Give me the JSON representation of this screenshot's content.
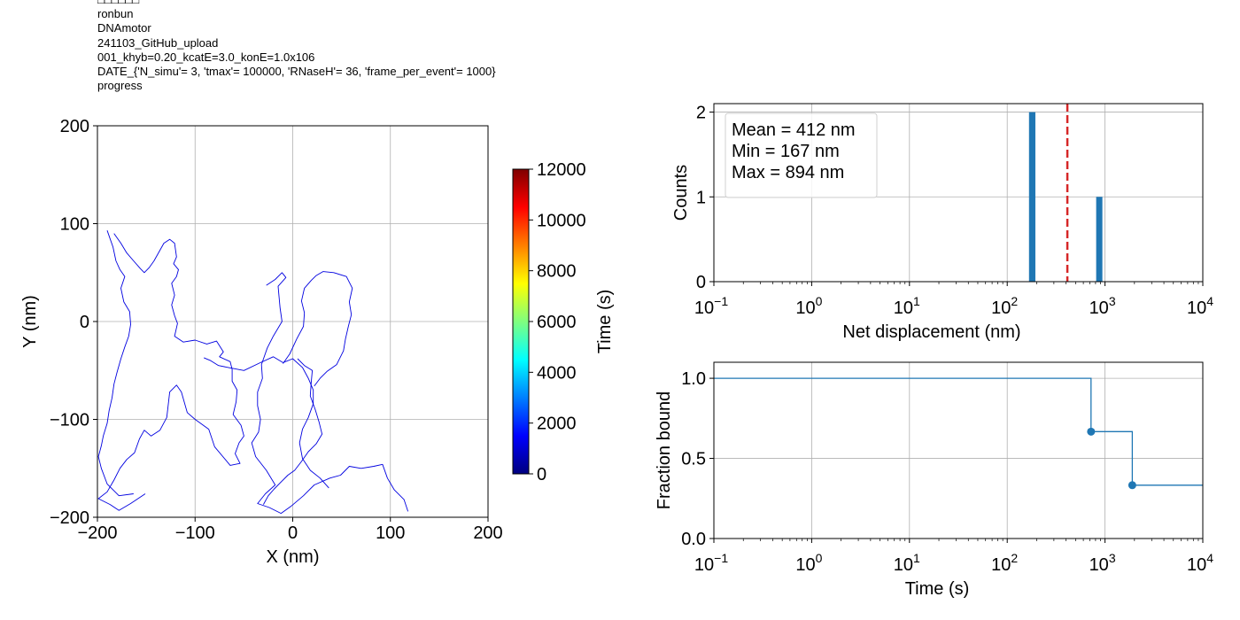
{
  "header": {
    "lines": [
      "□□□□□□",
      "ronbun",
      "DNAmotor",
      "241103_GitHub_upload",
      "001_khyb=0.20_kcatE=3.0_konE=1.0x106",
      "DATE_{'N_simu'= 3, 'tmax'= 100000, 'RNaseH'= 36, 'frame_per_event'= 1000}",
      "progress"
    ]
  },
  "chart_data": [
    {
      "type": "line",
      "name": "trajectory",
      "xlabel": "X (nm)",
      "ylabel": "Y (nm)",
      "xlim": [
        -200,
        200
      ],
      "ylim": [
        -200,
        200
      ],
      "xticks": [
        -200,
        -100,
        0,
        100,
        200
      ],
      "yticks": [
        -200,
        -100,
        0,
        100,
        200
      ],
      "grid": true,
      "line_color": "#0000e0",
      "colorbar": {
        "label": "Time (s)",
        "range": [
          0,
          12000
        ],
        "ticks": [
          0,
          2000,
          4000,
          6000,
          8000,
          10000,
          12000
        ],
        "colormap": "jet",
        "colors": [
          "#00007f",
          "#0000ff",
          "#007fff",
          "#00ffff",
          "#7fff7f",
          "#ffff00",
          "#ff7f00",
          "#ff0000",
          "#7f0000"
        ]
      },
      "segments": [
        [
          [
            -183,
            90
          ],
          [
            -176,
            80
          ],
          [
            -170,
            70
          ],
          [
            -163,
            62
          ],
          [
            -156,
            54
          ],
          [
            -152,
            50
          ],
          [
            -147,
            55
          ],
          [
            -142,
            62
          ],
          [
            -137,
            71
          ],
          [
            -132,
            80
          ],
          [
            -126,
            84
          ],
          [
            -121,
            80
          ],
          [
            -119,
            66
          ],
          [
            -122,
            59
          ],
          [
            -117,
            53
          ],
          [
            -119,
            46
          ],
          [
            -124,
            39
          ],
          [
            -121,
            27
          ],
          [
            -124,
            17
          ],
          [
            -121,
            6
          ],
          [
            -118,
            -2
          ],
          [
            -121,
            -15
          ],
          [
            -112,
            -21
          ],
          [
            -100,
            -19
          ],
          [
            -88,
            -23
          ],
          [
            -78,
            -20
          ],
          [
            -71,
            -31
          ],
          [
            -75,
            -36
          ],
          [
            -64,
            -41
          ],
          [
            -62,
            -49
          ],
          [
            -62,
            -61
          ],
          [
            -57,
            -70
          ],
          [
            -58,
            -82
          ],
          [
            -61,
            -95
          ],
          [
            -53,
            -106
          ],
          [
            -50,
            -117
          ],
          [
            -55,
            -124
          ],
          [
            -59,
            -135
          ],
          [
            -54,
            -145
          ],
          [
            -64,
            -147
          ],
          [
            -80,
            -128
          ],
          [
            -86,
            -110
          ],
          [
            -100,
            -100
          ],
          [
            -108,
            -93
          ],
          [
            -114,
            -72
          ],
          [
            -119,
            -65
          ],
          [
            -126,
            -72
          ],
          [
            -129,
            -98
          ],
          [
            -136,
            -111
          ],
          [
            -145,
            -117
          ],
          [
            -152,
            -111
          ],
          [
            -157,
            -120
          ],
          [
            -162,
            -134
          ],
          [
            -170,
            -141
          ],
          [
            -177,
            -150
          ],
          [
            -183,
            -162
          ],
          [
            -190,
            -174
          ],
          [
            -199,
            -181
          ],
          [
            -187,
            -187
          ],
          [
            -178,
            -193
          ],
          [
            -166,
            -186
          ],
          [
            -151,
            -176
          ]
        ],
        [
          [
            -190,
            93
          ],
          [
            -184,
            76
          ],
          [
            -181,
            62
          ],
          [
            -177,
            53
          ],
          [
            -172,
            46
          ],
          [
            -176,
            34
          ],
          [
            -173,
            20
          ],
          [
            -167,
            10
          ],
          [
            -166,
            -3
          ],
          [
            -168,
            -15
          ],
          [
            -172,
            -26
          ],
          [
            -176,
            -38
          ],
          [
            -180,
            -52
          ],
          [
            -183,
            -64
          ],
          [
            -185,
            -78
          ],
          [
            -188,
            -91
          ],
          [
            -190,
            -104
          ],
          [
            -194,
            -117
          ],
          [
            -196,
            -127
          ],
          [
            -199,
            -138
          ],
          [
            -196,
            -150
          ],
          [
            -190,
            -166
          ],
          [
            -178,
            -178
          ],
          [
            -163,
            -176
          ]
        ],
        [
          [
            -27,
            37
          ],
          [
            -18,
            43
          ],
          [
            -11,
            50
          ],
          [
            -7,
            45
          ],
          [
            -15,
            36
          ],
          [
            -14,
            25
          ],
          [
            -13,
            14
          ],
          [
            -11,
            0
          ],
          [
            -20,
            -15
          ],
          [
            -26,
            -27
          ],
          [
            -32,
            -44
          ],
          [
            -31,
            -58
          ],
          [
            -36,
            -72
          ],
          [
            -36,
            -86
          ],
          [
            -33,
            -100
          ],
          [
            -35,
            -113
          ],
          [
            -42,
            -124
          ],
          [
            -38,
            -138
          ],
          [
            -27,
            -152
          ],
          [
            -18,
            -167
          ],
          [
            -28,
            -176
          ],
          [
            -36,
            -186
          ],
          [
            -24,
            -190
          ],
          [
            -12,
            -196
          ],
          [
            -2,
            -189
          ],
          [
            11,
            -178
          ],
          [
            22,
            -167
          ],
          [
            38,
            -160
          ],
          [
            49,
            -157
          ],
          [
            58,
            -148
          ],
          [
            70,
            -150
          ],
          [
            83,
            -148
          ],
          [
            92,
            -146
          ],
          [
            97,
            -160
          ],
          [
            104,
            -172
          ],
          [
            114,
            -182
          ],
          [
            118,
            -194
          ]
        ],
        [
          [
            -91,
            -37
          ],
          [
            -84,
            -40
          ],
          [
            -76,
            -45
          ],
          [
            -66,
            -47
          ],
          [
            -50,
            -50
          ],
          [
            -33,
            -42
          ],
          [
            -20,
            -36
          ],
          [
            -10,
            -42
          ],
          [
            0,
            -38
          ],
          [
            10,
            -47
          ],
          [
            16,
            -58
          ],
          [
            21,
            -70
          ],
          [
            21,
            -84
          ],
          [
            16,
            -98
          ],
          [
            10,
            -110
          ],
          [
            7,
            -124
          ],
          [
            10,
            -140
          ],
          [
            18,
            -152
          ],
          [
            28,
            -160
          ],
          [
            37,
            -170
          ]
        ],
        [
          [
            -10,
            -43
          ],
          [
            -3,
            -33
          ],
          [
            4,
            -18
          ],
          [
            11,
            -5
          ],
          [
            12,
            9
          ],
          [
            9,
            21
          ],
          [
            12,
            34
          ],
          [
            19,
            42
          ],
          [
            24,
            47
          ],
          [
            31,
            51
          ],
          [
            42,
            50
          ],
          [
            55,
            46
          ],
          [
            61,
            34
          ],
          [
            58,
            20
          ],
          [
            60,
            7
          ],
          [
            57,
            -5
          ],
          [
            54,
            -18
          ],
          [
            52,
            -30
          ],
          [
            45,
            -44
          ],
          [
            35,
            -51
          ],
          [
            28,
            -58
          ],
          [
            22,
            -66
          ]
        ],
        [
          [
            5,
            -38
          ],
          [
            12,
            -45
          ],
          [
            20,
            -50
          ],
          [
            19,
            -62
          ],
          [
            18,
            -76
          ],
          [
            23,
            -90
          ],
          [
            27,
            -103
          ],
          [
            30,
            -115
          ],
          [
            24,
            -125
          ],
          [
            16,
            -133
          ],
          [
            9,
            -143
          ],
          [
            2,
            -152
          ],
          [
            -5,
            -157
          ],
          [
            -12,
            -164
          ],
          [
            -19,
            -171
          ],
          [
            -25,
            -178
          ],
          [
            -30,
            -187
          ]
        ]
      ]
    },
    {
      "type": "bar",
      "name": "net-displacement-histogram",
      "xlabel": "Net displacement (nm)",
      "ylabel": "Counts",
      "xscale": "log",
      "xlim": [
        0.1,
        10000
      ],
      "ylim": [
        0,
        2.1
      ],
      "yticks": [
        0,
        1,
        2
      ],
      "grid": true,
      "bar_color": "#1f77b4",
      "bins": [
        {
          "x_low": 167,
          "x_high": 194,
          "count": 2
        },
        {
          "x_low": 812,
          "x_high": 940,
          "count": 1
        }
      ],
      "mean_line": {
        "x": 412,
        "color": "#d62728",
        "style": "dashed"
      },
      "annotation": [
        "Mean = 412 nm",
        "Min = 167 nm",
        "Max = 894 nm"
      ]
    },
    {
      "type": "line",
      "name": "fraction-bound-survival",
      "xlabel": "Time (s)",
      "ylabel": "Fraction bound",
      "xscale": "log",
      "xlim": [
        0.1,
        10000
      ],
      "ylim": [
        0,
        1.1
      ],
      "yticks": [
        0.0,
        0.5,
        1.0
      ],
      "ytick_labels": [
        "0.0",
        "0.5",
        "1.0"
      ],
      "grid": true,
      "line_color": "#1f77b4",
      "steps": [
        {
          "x": 0.1,
          "y": 1.0
        },
        {
          "x": 720,
          "y": 1.0
        },
        {
          "x": 720,
          "y": 0.667
        },
        {
          "x": 1900,
          "y": 0.667
        },
        {
          "x": 1900,
          "y": 0.333
        },
        {
          "x": 10000,
          "y": 0.333
        }
      ],
      "markers": [
        {
          "x": 720,
          "y": 0.667
        },
        {
          "x": 1900,
          "y": 0.333
        }
      ]
    }
  ]
}
